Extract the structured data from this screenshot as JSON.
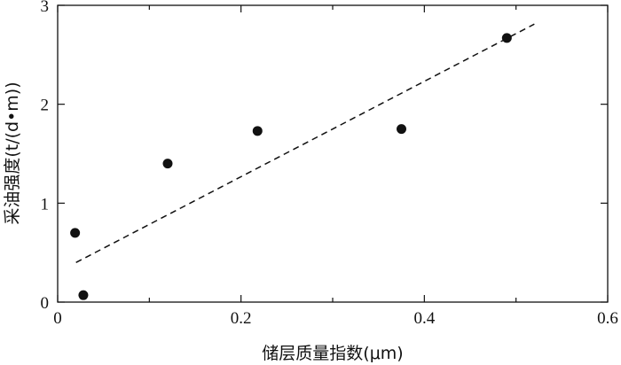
{
  "chart_data": {
    "type": "scatter",
    "title": "",
    "xlabel": "储层质量指数(μm)",
    "ylabel": "采油强度(t/(d•m))",
    "xlim": [
      0,
      0.6
    ],
    "ylim": [
      0,
      3
    ],
    "xticks": [
      0,
      0.2,
      0.4,
      0.6
    ],
    "xtick_labels": [
      "0",
      "0.2",
      "0.4",
      "0.6"
    ],
    "yticks": [
      0,
      1,
      2,
      3
    ],
    "ytick_labels": [
      "0",
      "1",
      "2",
      "3"
    ],
    "minor_x_step": 0.1,
    "grid": false,
    "legend": "none",
    "series": [
      {
        "points": [
          {
            "x": 0.019,
            "y": 0.7
          },
          {
            "x": 0.028,
            "y": 0.07
          },
          {
            "x": 0.12,
            "y": 1.4
          },
          {
            "x": 0.218,
            "y": 1.73
          },
          {
            "x": 0.375,
            "y": 1.75
          },
          {
            "x": 0.49,
            "y": 2.67
          }
        ],
        "color": "#111111",
        "marker": "filled-circle"
      }
    ],
    "trendline": {
      "style": "dashed",
      "color": "#111111",
      "x": [
        0.02,
        0.52
      ],
      "y": [
        0.4,
        2.81
      ]
    }
  }
}
